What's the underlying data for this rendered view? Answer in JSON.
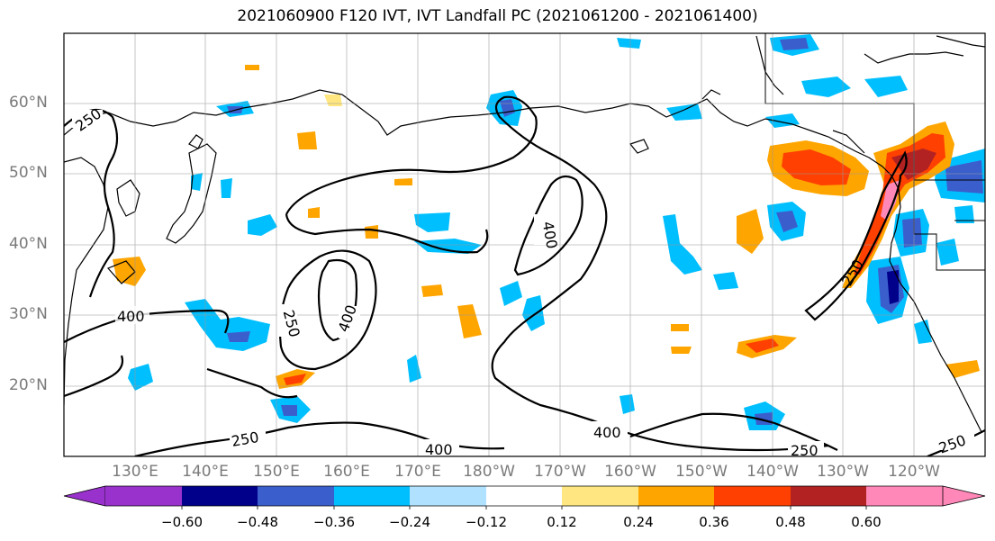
{
  "title": "2021060900 F120 IVT, IVT Landfall PC (2021061200 - 2021061400)",
  "lat_labels": [
    "60°N",
    "50°N",
    "40°N",
    "30°N",
    "20°N"
  ],
  "lon_labels": [
    "130°E",
    "140°E",
    "150°E",
    "160°E",
    "170°E",
    "180°W",
    "170°W",
    "160°W",
    "150°W",
    "140°W",
    "130°W",
    "120°W"
  ],
  "colorbar": {
    "tick_labels": [
      "-0.60",
      "-0.48",
      "-0.36",
      "-0.24",
      "-0.12",
      "0.12",
      "0.24",
      "0.36",
      "0.48",
      "0.60"
    ],
    "colors": [
      "#9932cc",
      "#00008b",
      "#3a5fcd",
      "#00bfff",
      "#b0e2ff",
      "#ffffff",
      "#ffe680",
      "#ffa500",
      "#ff4000",
      "#b22222",
      "#ff88b8"
    ]
  },
  "contour_labels": {
    "c250_nw": "250",
    "c400_center": "400",
    "c250_west": "250",
    "c400_west": "400",
    "c250_coast": "250",
    "c250_south": "250",
    "c400_south": "400",
    "c400_se": "400",
    "c250_se": "250",
    "c250_se2": "250",
    "c400_left": "400"
  }
}
